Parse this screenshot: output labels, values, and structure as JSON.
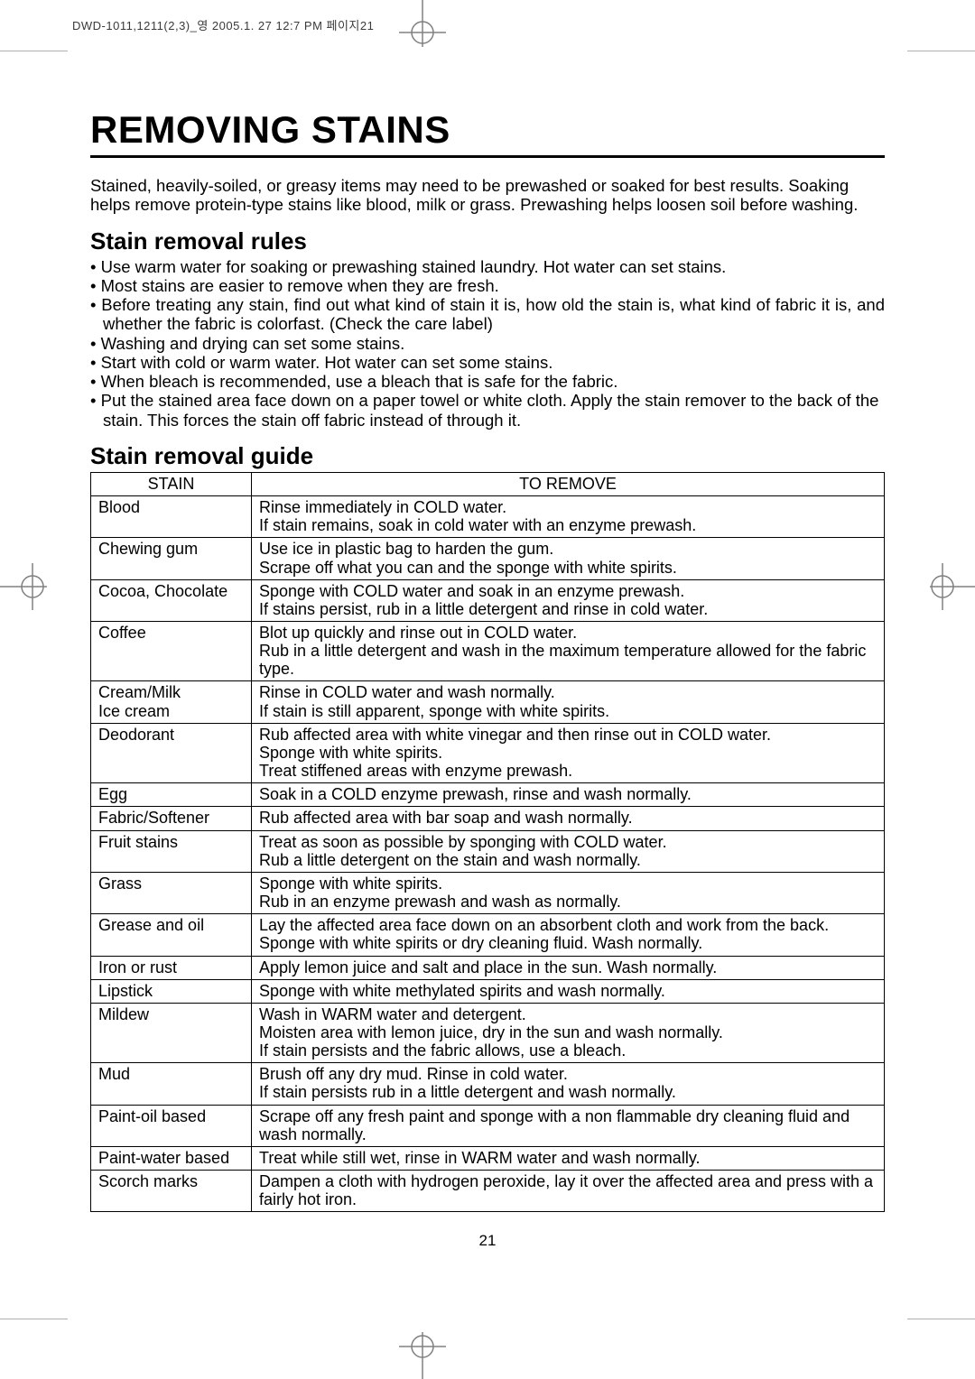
{
  "printHeader": "DWD-1011,1211(2,3)_영  2005.1. 27 12:7 PM  페이지21",
  "title": "REMOVING STAINS",
  "intro": "Stained, heavily-soiled, or greasy items may need to be prewashed or soaked for best results. Soaking helps remove protein-type stains like blood, milk or grass. Prewashing helps loosen soil before washing.",
  "rulesHead": "Stain removal rules",
  "rules": [
    "Use warm water for soaking or prewashing stained laundry. Hot water can set stains.",
    "Most stains are easier to remove when they are fresh.",
    "Before treating any stain, find out what kind of stain it is, how old the stain is, what kind of fabric it is, and whether the fabric is colorfast. (Check the care label)",
    "Washing and drying can set some stains.",
    "Start with cold or warm water. Hot water can set some stains.",
    "When bleach is recommended, use a bleach that is safe for the fabric.",
    "Put the stained area face down on a paper towel or white cloth. Apply the stain remover to the back of the stain. This forces the stain off fabric instead of through it."
  ],
  "rulesJustify": [
    false,
    false,
    true,
    false,
    false,
    false,
    false
  ],
  "guideHead": "Stain removal guide",
  "tableHeaders": {
    "stain": "STAIN",
    "remove": "TO REMOVE"
  },
  "rows": [
    {
      "stain": "Blood",
      "remove": "Rinse immediately in COLD water.\nIf stain remains, soak in cold water with an enzyme prewash."
    },
    {
      "stain": "Chewing gum",
      "remove": "Use ice in plastic bag to harden the gum.\nScrape off what you can and the sponge with white spirits."
    },
    {
      "stain": "Cocoa, Chocolate",
      "remove": "Sponge with COLD water and soak in an enzyme prewash.\nIf stains persist, rub in a little detergent and rinse in cold water."
    },
    {
      "stain": "Coffee",
      "remove": "Blot up quickly and rinse out in COLD water.\nRub in a little detergent and wash in the maximum temperature allowed for the fabric type."
    },
    {
      "stain": "Cream/Milk\nIce cream",
      "remove": "Rinse in COLD water and wash normally.\nIf stain is still apparent, sponge with white spirits."
    },
    {
      "stain": "Deodorant",
      "remove": "Rub affected area with white vinegar and then rinse out in COLD water.\nSponge with white spirits.\nTreat stiffened areas with enzyme prewash."
    },
    {
      "stain": "Egg",
      "remove": "Soak in a COLD enzyme prewash, rinse and wash normally."
    },
    {
      "stain": "Fabric/Softener",
      "remove": "Rub affected area with bar soap and wash normally."
    },
    {
      "stain": "Fruit stains",
      "remove": "Treat as soon as possible by sponging with COLD water.\nRub a little detergent on the stain and wash normally."
    },
    {
      "stain": "Grass",
      "remove": "Sponge with white spirits.\nRub in an enzyme prewash and wash as normally."
    },
    {
      "stain": "Grease and oil",
      "remove": "Lay the affected area face down on an absorbent cloth and work from the back. Sponge with white spirits or dry cleaning fluid. Wash normally."
    },
    {
      "stain": "Iron or rust",
      "remove": "Apply lemon juice and salt and place in the sun. Wash normally."
    },
    {
      "stain": "Lipstick",
      "remove": "Sponge with white methylated spirits and wash normally."
    },
    {
      "stain": "Mildew",
      "remove": "Wash in WARM water and detergent.\nMoisten area with lemon juice, dry in the sun and wash normally.\nIf stain persists and the fabric allows, use a bleach."
    },
    {
      "stain": "Mud",
      "remove": "Brush off any dry mud. Rinse in cold water.\nIf stain persists rub in a little detergent and wash normally."
    },
    {
      "stain": "Paint-oil based",
      "remove": "Scrape off any fresh paint and sponge with a non flammable dry cleaning fluid and wash normally."
    },
    {
      "stain": "Paint-water based",
      "remove": "Treat while still wet, rinse in WARM water and wash normally."
    },
    {
      "stain": "Scorch marks",
      "remove": "Dampen a cloth with hydrogen peroxide, lay it over the affected area and press with a fairly hot iron."
    }
  ],
  "pageNumber": "21",
  "colors": {
    "text": "#000000",
    "bg": "#ffffff",
    "cropStroke": "#808080"
  }
}
